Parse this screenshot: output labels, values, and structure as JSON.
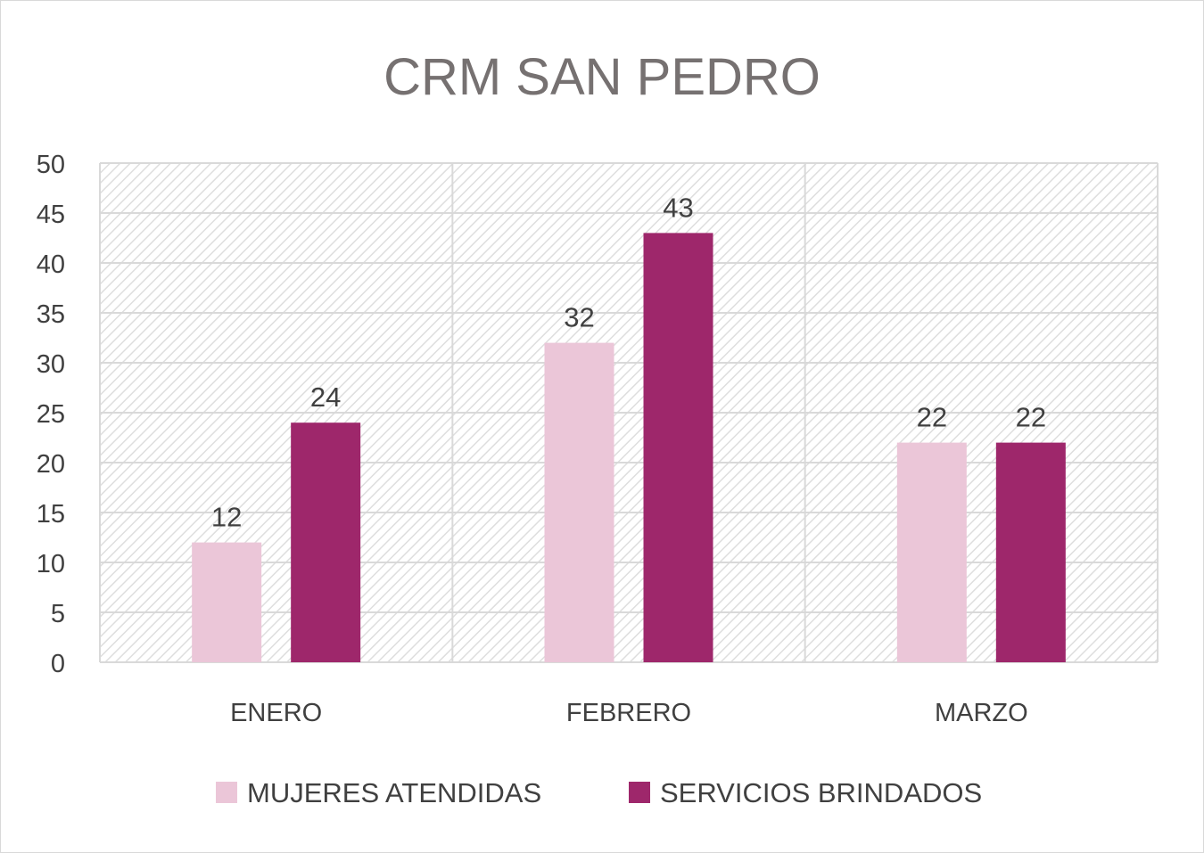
{
  "chart_data": {
    "type": "bar",
    "title": "CRM SAN PEDRO",
    "categories": [
      "ENERO",
      "FEBRERO",
      "MARZO"
    ],
    "series": [
      {
        "name": "MUJERES ATENDIDAS",
        "color": "#EBC6D8",
        "values": [
          12,
          32,
          22
        ]
      },
      {
        "name": "SERVICIOS BRINDADOS",
        "color": "#9E276B",
        "values": [
          24,
          43,
          22
        ]
      }
    ],
    "ylim": [
      0,
      50
    ],
    "yticks": [
      0,
      5,
      10,
      15,
      20,
      25,
      30,
      35,
      40,
      45,
      50
    ],
    "grid": true,
    "legend": "bottom",
    "data_labels": true
  }
}
